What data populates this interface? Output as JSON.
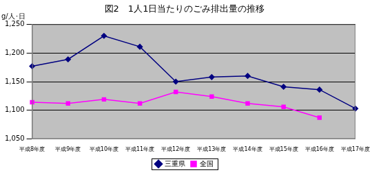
{
  "chart_data": {
    "type": "line",
    "title": "図2　1人1日当たりのごみ排出量の推移",
    "y_label": "g/人･日",
    "categories": [
      "平成8年度",
      "平成9年度",
      "平成10年度",
      "平成11年度",
      "平成12年度",
      "平成13年度",
      "平成14年度",
      "平成15年度",
      "平成16年度",
      "平成17年度"
    ],
    "series": [
      {
        "name": "三重県",
        "color": "#000080",
        "marker": "diamond",
        "values": [
          1177,
          1189,
          1230,
          1211,
          1150,
          1158,
          1160,
          1141,
          1136,
          1103
        ]
      },
      {
        "name": "全国",
        "color": "#ff00ff",
        "marker": "square",
        "values": [
          1114,
          1112,
          1119,
          1112,
          1132,
          1124,
          1112,
          1106,
          1087,
          null
        ]
      }
    ],
    "ylim": [
      1050,
      1250
    ],
    "yticks": [
      {
        "value": 1050,
        "label": "1,050"
      },
      {
        "value": 1100,
        "label": "1,100"
      },
      {
        "value": 1150,
        "label": "1,150"
      },
      {
        "value": 1200,
        "label": "1,200"
      },
      {
        "value": 1250,
        "label": "1,250"
      }
    ],
    "grid": true,
    "legend": "bottom"
  }
}
